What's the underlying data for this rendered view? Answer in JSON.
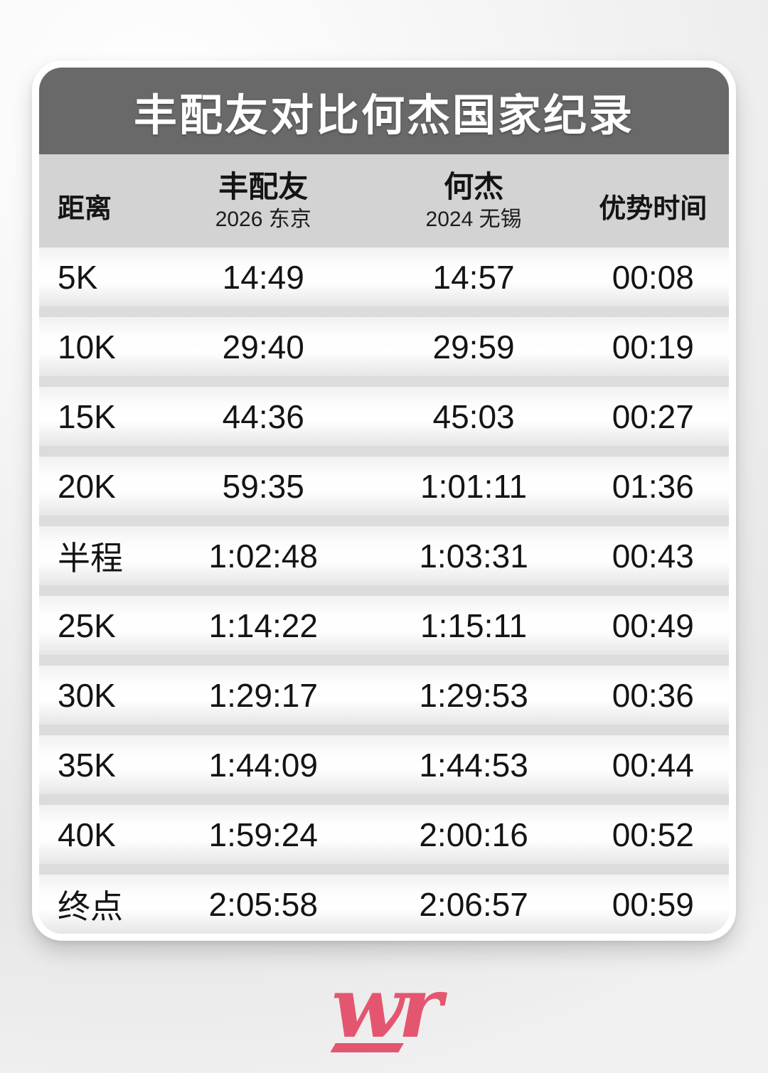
{
  "title": "丰配友对比何杰国家纪录",
  "table": {
    "header": {
      "distance_label": "距离",
      "runner1_name": "丰配友",
      "runner1_event": "2026 东京",
      "runner2_name": "何杰",
      "runner2_event": "2024 无锡",
      "advantage_label": "优势时间"
    },
    "rows": [
      {
        "distance": "5K",
        "runner1": "14:49",
        "runner2": "14:57",
        "advantage": "00:08"
      },
      {
        "distance": "10K",
        "runner1": "29:40",
        "runner2": "29:59",
        "advantage": "00:19"
      },
      {
        "distance": "15K",
        "runner1": "44:36",
        "runner2": "45:03",
        "advantage": "00:27"
      },
      {
        "distance": "20K",
        "runner1": "59:35",
        "runner2": "1:01:11",
        "advantage": "01:36"
      },
      {
        "distance": "半程",
        "runner1": "1:02:48",
        "runner2": "1:03:31",
        "advantage": "00:43"
      },
      {
        "distance": "25K",
        "runner1": "1:14:22",
        "runner2": "1:15:11",
        "advantage": "00:49"
      },
      {
        "distance": "30K",
        "runner1": "1:29:17",
        "runner2": "1:29:53",
        "advantage": "00:36"
      },
      {
        "distance": "35K",
        "runner1": "1:44:09",
        "runner2": "1:44:53",
        "advantage": "00:44"
      },
      {
        "distance": "40K",
        "runner1": "1:59:24",
        "runner2": "2:00:16",
        "advantage": "00:52"
      },
      {
        "distance": "终点",
        "runner1": "2:05:58",
        "runner2": "2:06:57",
        "advantage": "00:59"
      }
    ]
  },
  "logo_text": "wr",
  "colors": {
    "header_bg": "#696969",
    "subheader_bg": "#d3d3d3",
    "row_gap": "#dcdcdc",
    "text": "#141414",
    "title_text": "#ffffff",
    "logo_pink": "#e4566f"
  },
  "chart_data": {
    "type": "table",
    "title": "丰配友对比何杰国家纪录",
    "columns": [
      "距离",
      "丰配友 (2026 东京)",
      "何杰 (2024 无锡)",
      "优势时间"
    ],
    "rows": [
      [
        "5K",
        "14:49",
        "14:57",
        "00:08"
      ],
      [
        "10K",
        "29:40",
        "29:59",
        "00:19"
      ],
      [
        "15K",
        "44:36",
        "45:03",
        "00:27"
      ],
      [
        "20K",
        "59:35",
        "1:01:11",
        "01:36"
      ],
      [
        "半程",
        "1:02:48",
        "1:03:31",
        "00:43"
      ],
      [
        "25K",
        "1:14:22",
        "1:15:11",
        "00:49"
      ],
      [
        "30K",
        "1:29:17",
        "1:29:53",
        "00:36"
      ],
      [
        "35K",
        "1:44:09",
        "1:44:53",
        "00:44"
      ],
      [
        "40K",
        "1:59:24",
        "2:00:16",
        "00:52"
      ],
      [
        "终点",
        "2:05:58",
        "2:06:57",
        "00:59"
      ]
    ]
  }
}
